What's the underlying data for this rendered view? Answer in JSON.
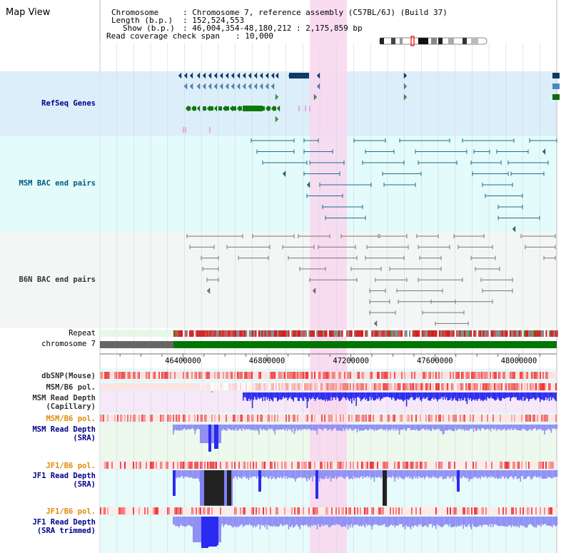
{
  "title": "Map View",
  "info": {
    "chromosome_label": "Chromosome",
    "chromosome_value": ": Chromosome 7, reference assembly (C57BL/6J) (Build 37)",
    "length_label": "Length (b.p.)",
    "length_value": ": 152,524,553",
    "show_label": "Show (b.p.)",
    "show_value": ": 46,004,354-48,180,212 : 2,175,859 bp",
    "span_label": "Read coverage check span",
    "span_value": ": 10,000"
  },
  "tracks": {
    "refseq": "RefSeq Genes",
    "msm_bac": "MSM BAC end pairs",
    "b6n_bac": "B6N BAC end pairs",
    "repeat": "Repeat",
    "chromosome": "chromosome 7",
    "dbsnp": "dbSNP(Mouse)",
    "msm_b6_pol_1": "MSM/B6 pol.",
    "msm_depth_cap_1": "MSM Read Depth",
    "msm_depth_cap_2": "(Capillary)",
    "msm_b6_pol_2": "MSM/B6 pol.",
    "msm_depth_sra_1": "MSM Read Depth",
    "msm_depth_sra_2": "(SRA)",
    "jf1_b6_pol_1": "JF1/B6 pol.",
    "jf1_depth_sra_1": "JF1 Read Depth",
    "jf1_depth_sra_2": "(SRA)",
    "jf1_b6_pol_2": "JF1/B6 pol.",
    "jf1_depth_trim_1": "JF1 Read Depth",
    "jf1_depth_trim_2": "(SRA trimmed)"
  },
  "axis": {
    "ticks": [
      {
        "pos": 46400000,
        "label": "46400000"
      },
      {
        "pos": 46800000,
        "label": "46800000"
      },
      {
        "pos": 47200000,
        "label": "47200000"
      },
      {
        "pos": 47600000,
        "label": "47600000"
      },
      {
        "pos": 48000000,
        "label": "48000000"
      }
    ]
  },
  "colors": {
    "refseq_bg": "#dceefa",
    "msm_bg": "#e4fbfb",
    "b6n_bg": "#f4f6f6",
    "highlight": "#f9d6ee",
    "chromosome_bar": "#007700",
    "chromosome_gap": "#666666",
    "depth_blue": "#2a2af0",
    "depth_light": "#8f8ff4",
    "snp_red": "#ee3030",
    "bac_msm": "#1f6e8a",
    "bac_b6n": "#777777"
  }
}
